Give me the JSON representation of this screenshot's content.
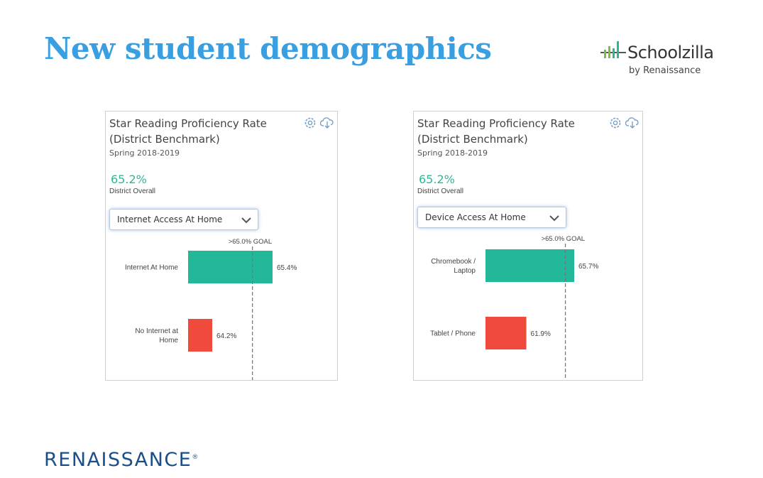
{
  "slide": {
    "title": "New student demographics",
    "schoolzilla_logo": {
      "name": "Schoolzilla",
      "tagline": "by Renaissance",
      "icon": "bar-chart-logo-icon",
      "colors": [
        "#7cc043",
        "#2bb89a",
        "#444444"
      ]
    },
    "renaissance_logo": {
      "name": "RENAISSANCE",
      "mark": "®",
      "color": "#1a4f8a"
    }
  },
  "cards": [
    {
      "title": "Star Reading Proficiency Rate (District Benchmark)",
      "subtitle": "Spring 2018-2019",
      "metric_value": "65.2%",
      "metric_label": "District Overall",
      "dropdown_value": "Internet Access At Home",
      "icons": [
        "gear-icon",
        "download-cloud-icon"
      ]
    },
    {
      "title": "Star Reading Proficiency Rate (District Benchmark)",
      "subtitle": "Spring 2018-2019",
      "metric_value": "65.2%",
      "metric_label": "District Overall",
      "dropdown_value": "Device Access At Home",
      "icons": [
        "gear-icon",
        "download-cloud-icon"
      ]
    }
  ],
  "chart_data": [
    {
      "type": "bar",
      "orientation": "horizontal",
      "categories": [
        "Internet At Home",
        "No Internet at Home"
      ],
      "category_lines": [
        [
          "Internet At Home"
        ],
        [
          "No Internet at",
          "Home"
        ]
      ],
      "values": [
        65.4,
        64.2
      ],
      "value_labels": [
        "65.4%",
        "64.2%"
      ],
      "colors": [
        "#23b89a",
        "#ef4a3c"
      ],
      "goal": {
        "value": 65.0,
        "label": ">65.0% GOAL"
      },
      "xlim": [
        0,
        65.4
      ],
      "axis_visible_min": 63.72
    },
    {
      "type": "bar",
      "orientation": "horizontal",
      "categories": [
        "Chromebook / Laptop",
        "Tablet / Phone"
      ],
      "category_lines": [
        [
          "Chromebook /",
          "Laptop"
        ],
        [
          "Tablet / Phone"
        ]
      ],
      "values": [
        65.7,
        61.9
      ],
      "value_labels": [
        "65.7%",
        "61.9%"
      ],
      "colors": [
        "#23b89a",
        "#ef4a3c"
      ],
      "goal": {
        "value": 65.0,
        "label": ">65.0% GOAL"
      },
      "xlim": [
        0,
        65.7
      ],
      "axis_visible_min": 58.66
    }
  ]
}
